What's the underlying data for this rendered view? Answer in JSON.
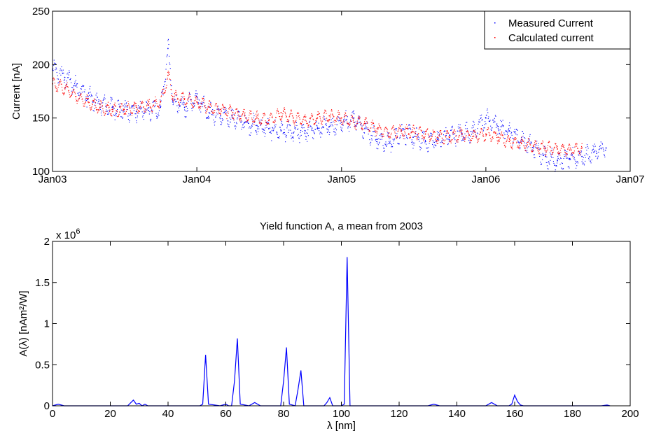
{
  "chart_data": [
    {
      "type": "scatter",
      "title": "",
      "xlabel": "",
      "ylabel": "Current [nA]",
      "ylim": [
        100,
        250
      ],
      "yticks": [
        100,
        150,
        200,
        250
      ],
      "xticks": [
        "Jan03",
        "Jan04",
        "Jan05",
        "Jan06",
        "Jan07"
      ],
      "xlim": [
        "2003-01-01",
        "2007-01-01"
      ],
      "grid": false,
      "legend_position": "top-right",
      "series": [
        {
          "name": "Measured Current",
          "color": "#0000ff",
          "style": "dots",
          "x": [
            "2003-01-01",
            "2003-02-01",
            "2003-03-01",
            "2003-04-01",
            "2003-05-01",
            "2003-06-01",
            "2003-07-01",
            "2003-08-01",
            "2003-09-01",
            "2003-10-01",
            "2003-10-20",
            "2003-11-01",
            "2003-12-01",
            "2004-01-01",
            "2004-02-01",
            "2004-03-01",
            "2004-04-01",
            "2004-05-01",
            "2004-06-01",
            "2004-07-01",
            "2004-08-01",
            "2004-09-01",
            "2004-10-01",
            "2004-11-01",
            "2004-12-01",
            "2005-01-01",
            "2005-02-01",
            "2005-03-01",
            "2005-04-01",
            "2005-05-01",
            "2005-06-01",
            "2005-07-01",
            "2005-08-01",
            "2005-09-01",
            "2005-10-01",
            "2005-11-01",
            "2005-12-01",
            "2006-01-01",
            "2006-02-01",
            "2006-03-01",
            "2006-04-01",
            "2006-05-01",
            "2006-06-01",
            "2006-07-01",
            "2006-08-01",
            "2006-09-01",
            "2006-10-01",
            "2006-11-01"
          ],
          "y": [
            195,
            188,
            180,
            170,
            163,
            160,
            158,
            156,
            157,
            160,
            215,
            165,
            160,
            170,
            155,
            152,
            150,
            146,
            143,
            140,
            138,
            136,
            138,
            140,
            142,
            146,
            150,
            140,
            130,
            126,
            138,
            132,
            128,
            130,
            134,
            136,
            138,
            150,
            142,
            138,
            130,
            122,
            114,
            110,
            112,
            114,
            118,
            122
          ]
        },
        {
          "name": "Calculated current",
          "color": "#ff0000",
          "style": "dots",
          "x": [
            "2003-01-01",
            "2003-02-01",
            "2003-03-01",
            "2003-04-01",
            "2003-05-01",
            "2003-06-01",
            "2003-07-01",
            "2003-08-01",
            "2003-09-01",
            "2003-10-01",
            "2003-10-20",
            "2003-11-01",
            "2003-12-01",
            "2004-01-01",
            "2004-02-01",
            "2004-03-01",
            "2004-04-01",
            "2004-05-01",
            "2004-06-01",
            "2004-07-01",
            "2004-08-01",
            "2004-09-01",
            "2004-10-01",
            "2004-11-01",
            "2004-12-01",
            "2005-01-01",
            "2005-02-01",
            "2005-03-01",
            "2005-04-01",
            "2005-05-01",
            "2005-06-01",
            "2005-07-01",
            "2005-08-01",
            "2005-09-01",
            "2005-10-01",
            "2005-11-01",
            "2005-12-01",
            "2006-01-01",
            "2006-02-01",
            "2006-03-01",
            "2006-04-01",
            "2006-05-01",
            "2006-06-01",
            "2006-07-01",
            "2006-08-01",
            "2006-09-01"
          ],
          "y": [
            182,
            178,
            170,
            165,
            160,
            158,
            158,
            160,
            162,
            165,
            190,
            170,
            168,
            165,
            160,
            158,
            155,
            152,
            150,
            148,
            155,
            150,
            148,
            150,
            152,
            150,
            146,
            145,
            140,
            136,
            138,
            137,
            135,
            132,
            132,
            135,
            133,
            135,
            132,
            128,
            126,
            124,
            122,
            121,
            120,
            122
          ]
        }
      ]
    },
    {
      "type": "line",
      "title": "Yield function A, a mean from 2003",
      "xlabel": "λ [nm]",
      "ylabel": "A(λ) [nAm²/W]",
      "y_exponent_label": "x 10",
      "y_exponent": "6",
      "xlim": [
        0,
        200
      ],
      "ylim": [
        0,
        2
      ],
      "xticks": [
        0,
        20,
        40,
        60,
        80,
        100,
        120,
        140,
        160,
        180,
        200
      ],
      "yticks": [
        0,
        0.5,
        1,
        1.5,
        2
      ],
      "grid": false,
      "series": [
        {
          "color": "#0000ff",
          "x": [
            0,
            2,
            4,
            6,
            26,
            28,
            29,
            30,
            31,
            32,
            33,
            51,
            52,
            53,
            54,
            58,
            60,
            61,
            62,
            63,
            64,
            65,
            68,
            70,
            72,
            79,
            80,
            81,
            82,
            84,
            85,
            86,
            87,
            94,
            95,
            96,
            97,
            100,
            101,
            102,
            103,
            130,
            132,
            134,
            150,
            152,
            154,
            158,
            159,
            160,
            161,
            162,
            163,
            190,
            192,
            193
          ],
          "y": [
            0,
            0.02,
            0,
            0,
            0,
            0.07,
            0.02,
            0.03,
            0,
            0.02,
            0,
            0,
            0.02,
            0.62,
            0.02,
            0,
            0.02,
            0,
            0,
            0.3,
            0.82,
            0.02,
            0,
            0.04,
            0,
            0,
            0.3,
            0.71,
            0.02,
            0,
            0.2,
            0.43,
            0,
            0,
            0.04,
            0.1,
            0,
            0,
            0.02,
            1.81,
            0,
            0,
            0.02,
            0,
            0,
            0.04,
            0,
            0,
            0.02,
            0.13,
            0.05,
            0.01,
            0,
            0,
            0.01,
            0
          ]
        }
      ]
    }
  ]
}
